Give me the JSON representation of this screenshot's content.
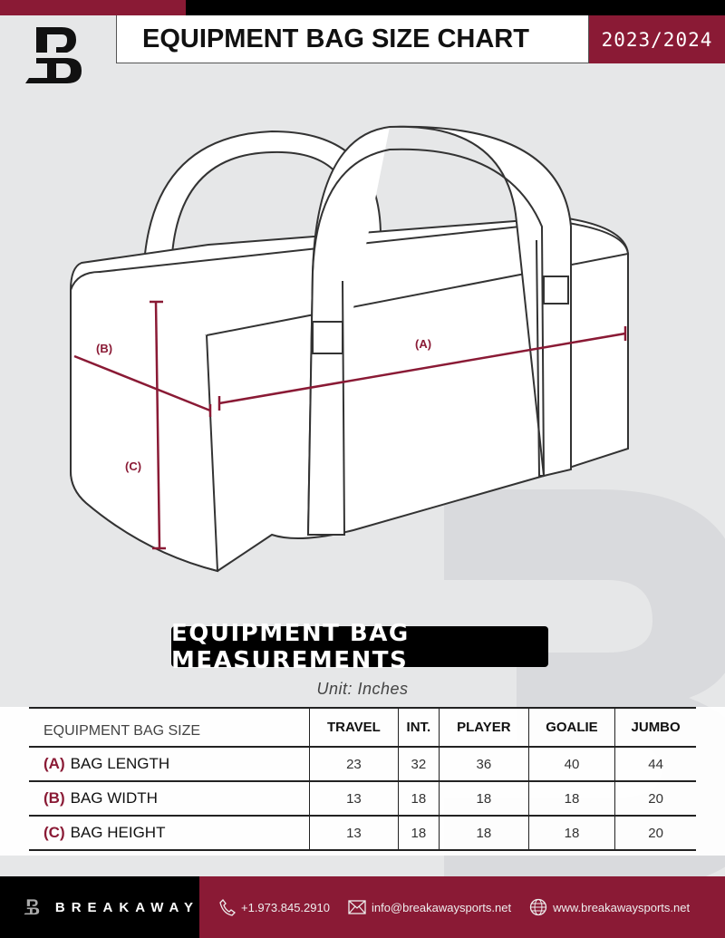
{
  "header": {
    "title": "EQUIPMENT BAG SIZE CHART",
    "season": "2023/2024"
  },
  "diagram": {
    "labels": {
      "a": "(A)",
      "b": "(B)",
      "c": "(C)"
    }
  },
  "section": {
    "title": "EQUIPMENT BAG MEASUREMENTS",
    "unit": "Unit: Inches"
  },
  "table": {
    "corner": "EQUIPMENT BAG SIZE",
    "columns": [
      "TRAVEL",
      "INT.",
      "PLAYER",
      "GOALIE",
      "JUMBO"
    ],
    "rows": [
      {
        "letter": "(A)",
        "label": "BAG LENGTH",
        "values": [
          "23",
          "32",
          "36",
          "40",
          "44"
        ]
      },
      {
        "letter": "(B)",
        "label": "BAG WIDTH",
        "values": [
          "13",
          "18",
          "18",
          "18",
          "20"
        ]
      },
      {
        "letter": "(C)",
        "label": "BAG HEIGHT",
        "values": [
          "13",
          "18",
          "18",
          "18",
          "20"
        ]
      }
    ]
  },
  "footer": {
    "brand": "BREAKAWAY",
    "phone": "+1.973.845.2910",
    "email": "info@breakawaysports.net",
    "website": "www.breakawaysports.net"
  },
  "colors": {
    "accent": "#8a1a35",
    "dark": "#000000",
    "background": "#e6e7e8"
  }
}
